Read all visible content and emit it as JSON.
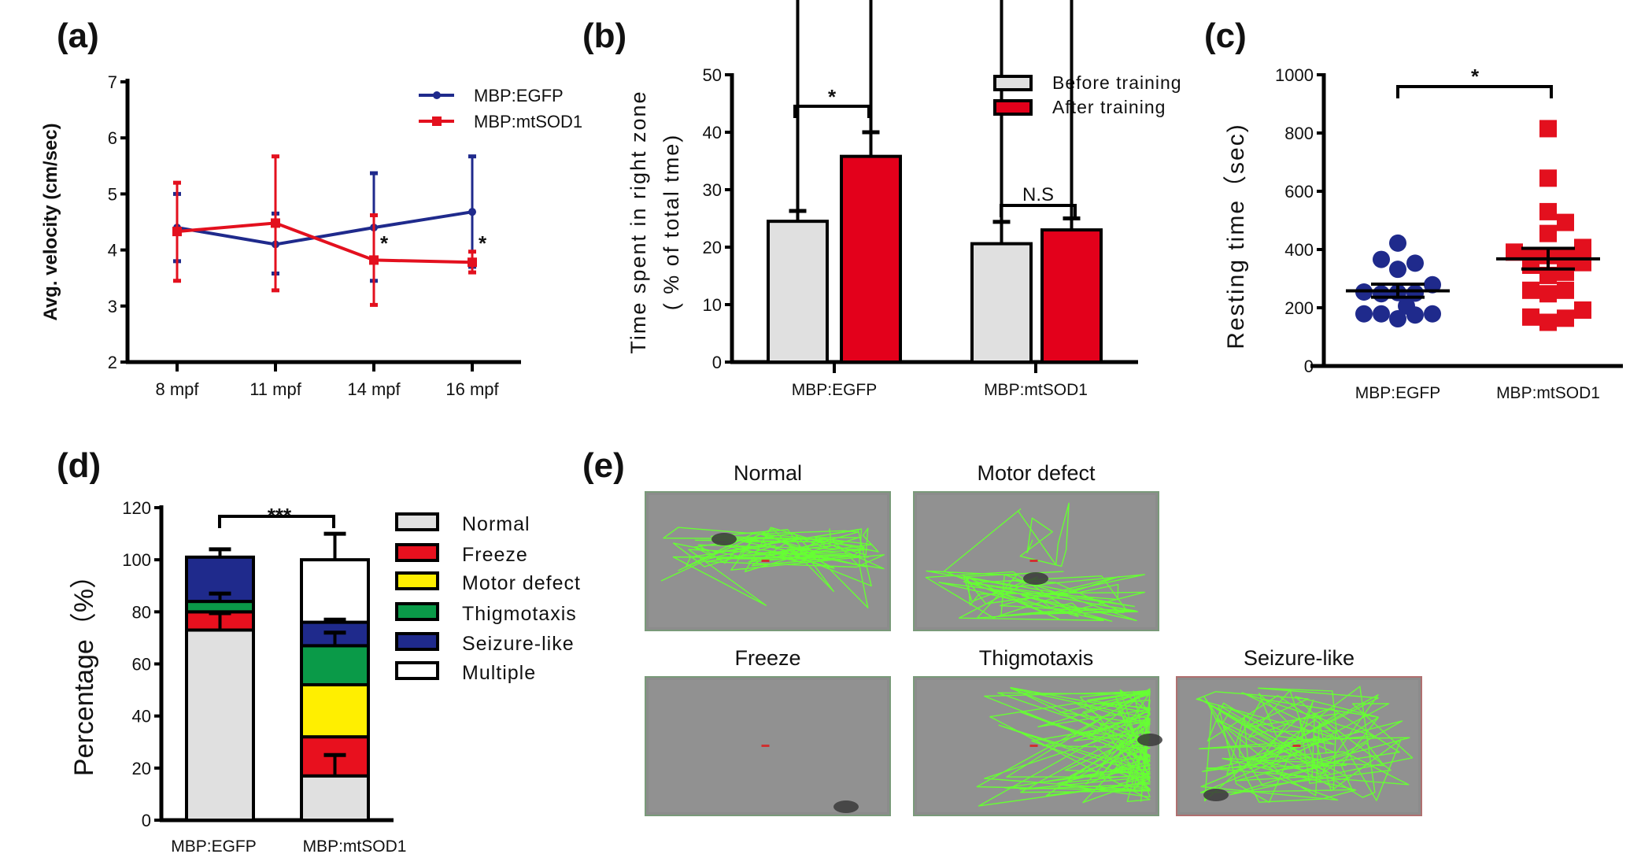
{
  "panel_labels": {
    "a": "(a)",
    "b": "(b)",
    "c": "(c)",
    "d": "(d)",
    "e": "(e)"
  },
  "colors": {
    "egfp": "#1f2a8c",
    "mtsod1": "#e3101e",
    "before": "#e0e0e0",
    "after": "#e3001b",
    "normal": "#e0e0e0",
    "freeze": "#e8101e",
    "motor_defect": "#ffef00",
    "thigmotaxis": "#0a9a48",
    "seizure_like": "#1f2a8c",
    "multiple": "#ffffff",
    "track": "#66ff33"
  },
  "chart_data": [
    {
      "id": "a",
      "type": "line",
      "ylabel": "Avg. velocity (cm/sec)",
      "xlabel": "",
      "categories": [
        "8 mpf",
        "11 mpf",
        "14 mpf",
        "16 mpf"
      ],
      "ylim": [
        2,
        7
      ],
      "yticks": [
        "2",
        "3",
        "4",
        "5",
        "6",
        "7"
      ],
      "legend_position": "top-right",
      "series": [
        {
          "name": "MBP:EGFP",
          "values": [
            4.4,
            4.1,
            4.4,
            4.68
          ],
          "err_low": [
            3.8,
            3.58,
            3.45,
            3.7
          ],
          "err_high": [
            5.0,
            4.65,
            5.37,
            5.67
          ],
          "marker": "circle"
        },
        {
          "name": "MBP:mtSOD1",
          "values": [
            4.33,
            4.48,
            3.82,
            3.78
          ],
          "err_low": [
            3.45,
            3.28,
            3.02,
            3.6
          ],
          "err_high": [
            5.2,
            5.67,
            4.62,
            3.97
          ],
          "marker": "square"
        }
      ],
      "annotations": [
        {
          "category": "14 mpf",
          "text": "*"
        },
        {
          "category": "16 mpf",
          "text": "*"
        }
      ]
    },
    {
      "id": "b",
      "type": "bar",
      "ylabel": "Time spent in right zone",
      "ylabel2": "( % of total tme)",
      "categories": [
        "MBP:EGFP",
        "MBP:mtSOD1"
      ],
      "ylim": [
        0,
        50
      ],
      "yticks": [
        "0",
        "10",
        "20",
        "30",
        "40",
        "50"
      ],
      "legend_position": "top-right",
      "series": [
        {
          "name": "Before training",
          "values": [
            24.5,
            20.6
          ],
          "err": [
            1.8,
            3.8
          ]
        },
        {
          "name": "After training",
          "values": [
            35.8,
            23.0
          ],
          "err": [
            4.2,
            2.0
          ]
        }
      ],
      "annotations": [
        {
          "category": "MBP:EGFP",
          "text": "*"
        },
        {
          "category": "MBP:mtSOD1",
          "text": "N.S"
        }
      ]
    },
    {
      "id": "c",
      "type": "scatter",
      "ylabel": "Resting time（sec)",
      "categories": [
        "MBP:EGFP",
        "MBP:mtSOD1"
      ],
      "ylim": [
        0,
        1000
      ],
      "yticks": [
        "0",
        "200",
        "400",
        "600",
        "800",
        "1000"
      ],
      "series": [
        {
          "category": "MBP:EGFP",
          "values": [
            422,
            366,
            353,
            332,
            279,
            254,
            248,
            250,
            252,
            206,
            179,
            179,
            175,
            179,
            162
          ],
          "mean": 258,
          "sem": [
            236,
            281
          ],
          "marker": "circle"
        },
        {
          "category": "MBP:mtSOD1",
          "values": [
            815,
            645,
            530,
            493,
            455,
            391,
            407,
            379,
            379,
            379,
            355,
            346,
            311,
            322,
            260,
            248,
            260,
            192,
            168,
            164,
            150
          ],
          "mean": 368,
          "sem": [
            333,
            404
          ],
          "marker": "square"
        }
      ],
      "annotations": [
        {
          "text": "*"
        }
      ]
    },
    {
      "id": "d",
      "type": "bar",
      "stacked": true,
      "ylabel": "Percentage（%）",
      "categories": [
        "MBP:EGFP",
        "MBP:mtSOD1"
      ],
      "ylim": [
        0,
        120
      ],
      "yticks": [
        "0",
        "20",
        "40",
        "60",
        "80",
        "100",
        "120"
      ],
      "legend_position": "right",
      "series": [
        {
          "name": "Normal",
          "key": "normal",
          "values": [
            73,
            17
          ]
        },
        {
          "name": "Freeze",
          "key": "freeze",
          "values": [
            7,
            15
          ]
        },
        {
          "name": "Motor defect",
          "key": "motor_defect",
          "values": [
            0,
            20
          ]
        },
        {
          "name": "Thigmotaxis",
          "key": "thigmotaxis",
          "values": [
            4,
            15
          ]
        },
        {
          "name": "Seizure-like",
          "key": "seizure_like",
          "values": [
            17,
            9
          ]
        },
        {
          "name": "Multiple",
          "key": "multiple",
          "values": [
            0,
            24
          ]
        }
      ],
      "error_bars": [
        {
          "category": 0,
          "from": 101,
          "to": 104
        },
        {
          "category": 0,
          "from": 84,
          "to": 87
        },
        {
          "category": 0,
          "from": 73,
          "to": 79.5
        },
        {
          "category": 1,
          "from": 100,
          "to": 110
        },
        {
          "category": 1,
          "from": 76,
          "to": 77
        },
        {
          "category": 1,
          "from": 67,
          "to": 72
        },
        {
          "category": 1,
          "from": 17,
          "to": 25
        }
      ],
      "annotations": [
        {
          "text": "***"
        }
      ]
    }
  ],
  "panel_e": {
    "tracks": [
      {
        "title": "Normal",
        "pattern": "normal"
      },
      {
        "title": "Motor defect",
        "pattern": "motor"
      },
      {
        "title": "Freeze",
        "pattern": "freeze"
      },
      {
        "title": "Thigmotaxis",
        "pattern": "thigmo"
      },
      {
        "title": "Seizure-like",
        "pattern": "seizure"
      }
    ]
  }
}
